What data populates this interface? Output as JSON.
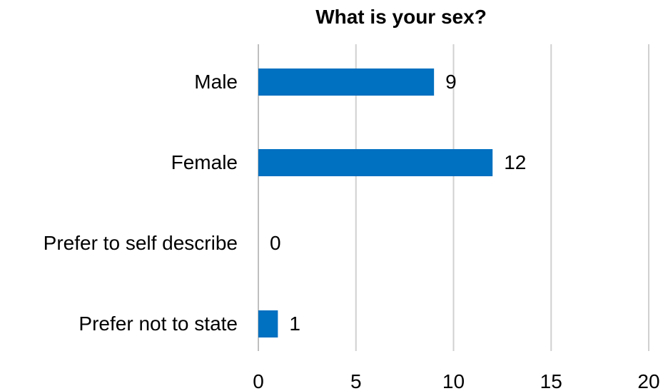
{
  "chart_data": {
    "type": "bar",
    "orientation": "horizontal",
    "title": "What is your sex?",
    "categories": [
      "Male",
      "Female",
      "Prefer to self describe",
      "Prefer not to state"
    ],
    "values": [
      9,
      12,
      0,
      1
    ],
    "data_labels": [
      "9",
      "12",
      "0",
      "1"
    ],
    "xlim": [
      0,
      20
    ],
    "x_ticks": [
      0,
      5,
      10,
      15,
      20
    ],
    "x_tick_labels": [
      "0",
      "5",
      "10",
      "15",
      "20"
    ],
    "grid": true,
    "legend": "none",
    "colors": {
      "bar": "#0070C0",
      "grid": "#D0D0D0",
      "text": "#000000"
    }
  }
}
